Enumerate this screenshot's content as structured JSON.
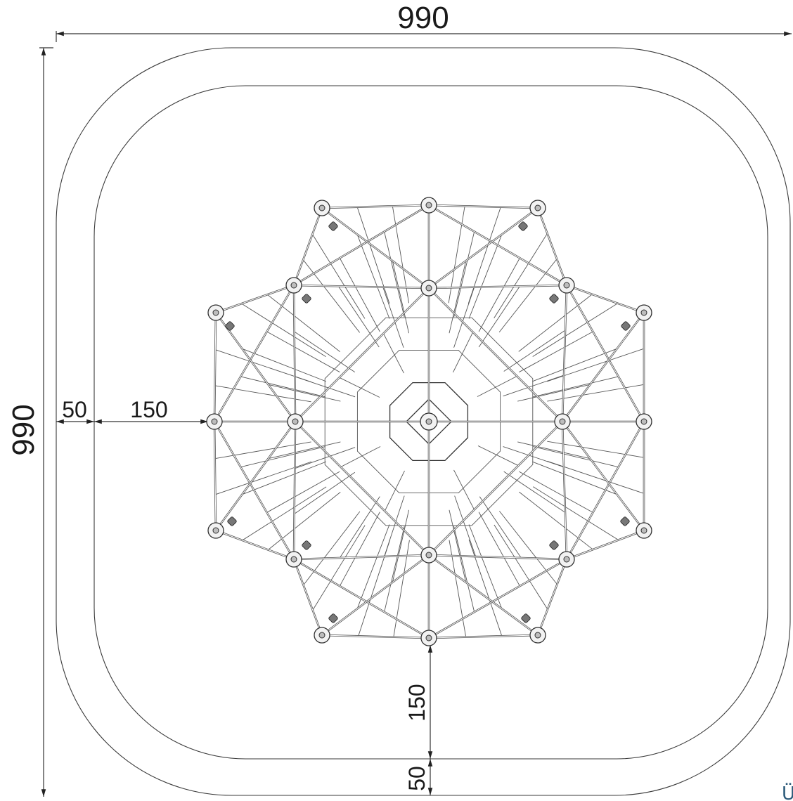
{
  "dimensions": {
    "overall_width": "990",
    "overall_height": "990",
    "left_margin": "50",
    "left_safety_zone": "150",
    "bottom_safety_zone": "150",
    "bottom_margin": "50"
  },
  "corner_mark": "Ü"
}
